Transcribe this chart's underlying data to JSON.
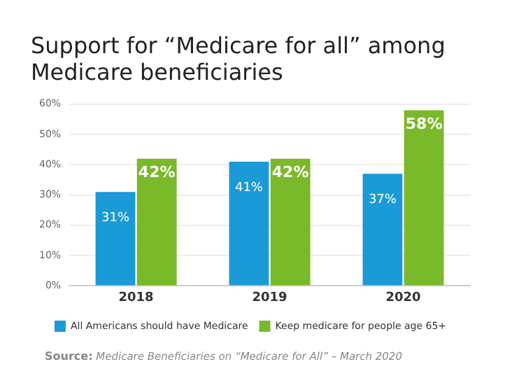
{
  "chart_data": {
    "type": "bar",
    "title": "Support for “Medicare for all” among Medicare beneficiaries",
    "categories": [
      "2018",
      "2019",
      "2020"
    ],
    "series": [
      {
        "name": "All Americans should have Medicare",
        "color": "#1a9ad6",
        "values": [
          31,
          41,
          37
        ],
        "value_labels": [
          "31%",
          "41%",
          "37%"
        ]
      },
      {
        "name": "Keep medicare for people age 65+",
        "color": "#7ab929",
        "values": [
          42,
          42,
          58
        ],
        "value_labels": [
          "42%",
          "42%",
          "58%"
        ]
      }
    ],
    "ylim": [
      0,
      60
    ],
    "yticks": [
      {
        "value": 0,
        "label": "0%"
      },
      {
        "value": 10,
        "label": "10%"
      },
      {
        "value": 20,
        "label": "20%"
      },
      {
        "value": 30,
        "label": "30%"
      },
      {
        "value": 40,
        "label": "40%"
      },
      {
        "value": 50,
        "label": "50%"
      },
      {
        "value": 60,
        "label": "60%"
      }
    ],
    "grid": "y",
    "legend": "bottom",
    "annotations": [
      "Source: Medicare Beneficiaries on “Medicare for All” – March 2020"
    ]
  }
}
